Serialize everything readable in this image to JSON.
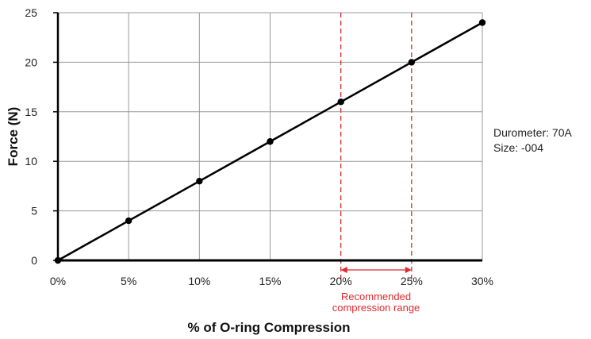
{
  "chart_data": {
    "type": "line",
    "x": [
      0,
      5,
      10,
      15,
      20,
      25,
      30
    ],
    "series": [
      {
        "values": [
          0,
          4,
          8,
          12,
          16,
          20,
          24
        ],
        "color": "#000000"
      }
    ],
    "xticks": [
      "0%",
      "5%",
      "10%",
      "15%",
      "20%",
      "25%",
      "30%"
    ],
    "yticks": [
      "0",
      "5",
      "10",
      "15",
      "20",
      "25"
    ],
    "xlim": [
      0,
      30
    ],
    "ylim": [
      0,
      25
    ],
    "xlabel": "% of O-ring Compression",
    "ylabel": "Force (N)",
    "grid": true,
    "annotations": {
      "durometer": "Durometer: 70A",
      "size": "Size: -004",
      "range_line1": "Recommended",
      "range_line2": "compression range",
      "range_start": 20,
      "range_end": 25
    },
    "colors": {
      "line": "#000000",
      "grid": "#999999",
      "highlight": "#e0282e"
    }
  }
}
